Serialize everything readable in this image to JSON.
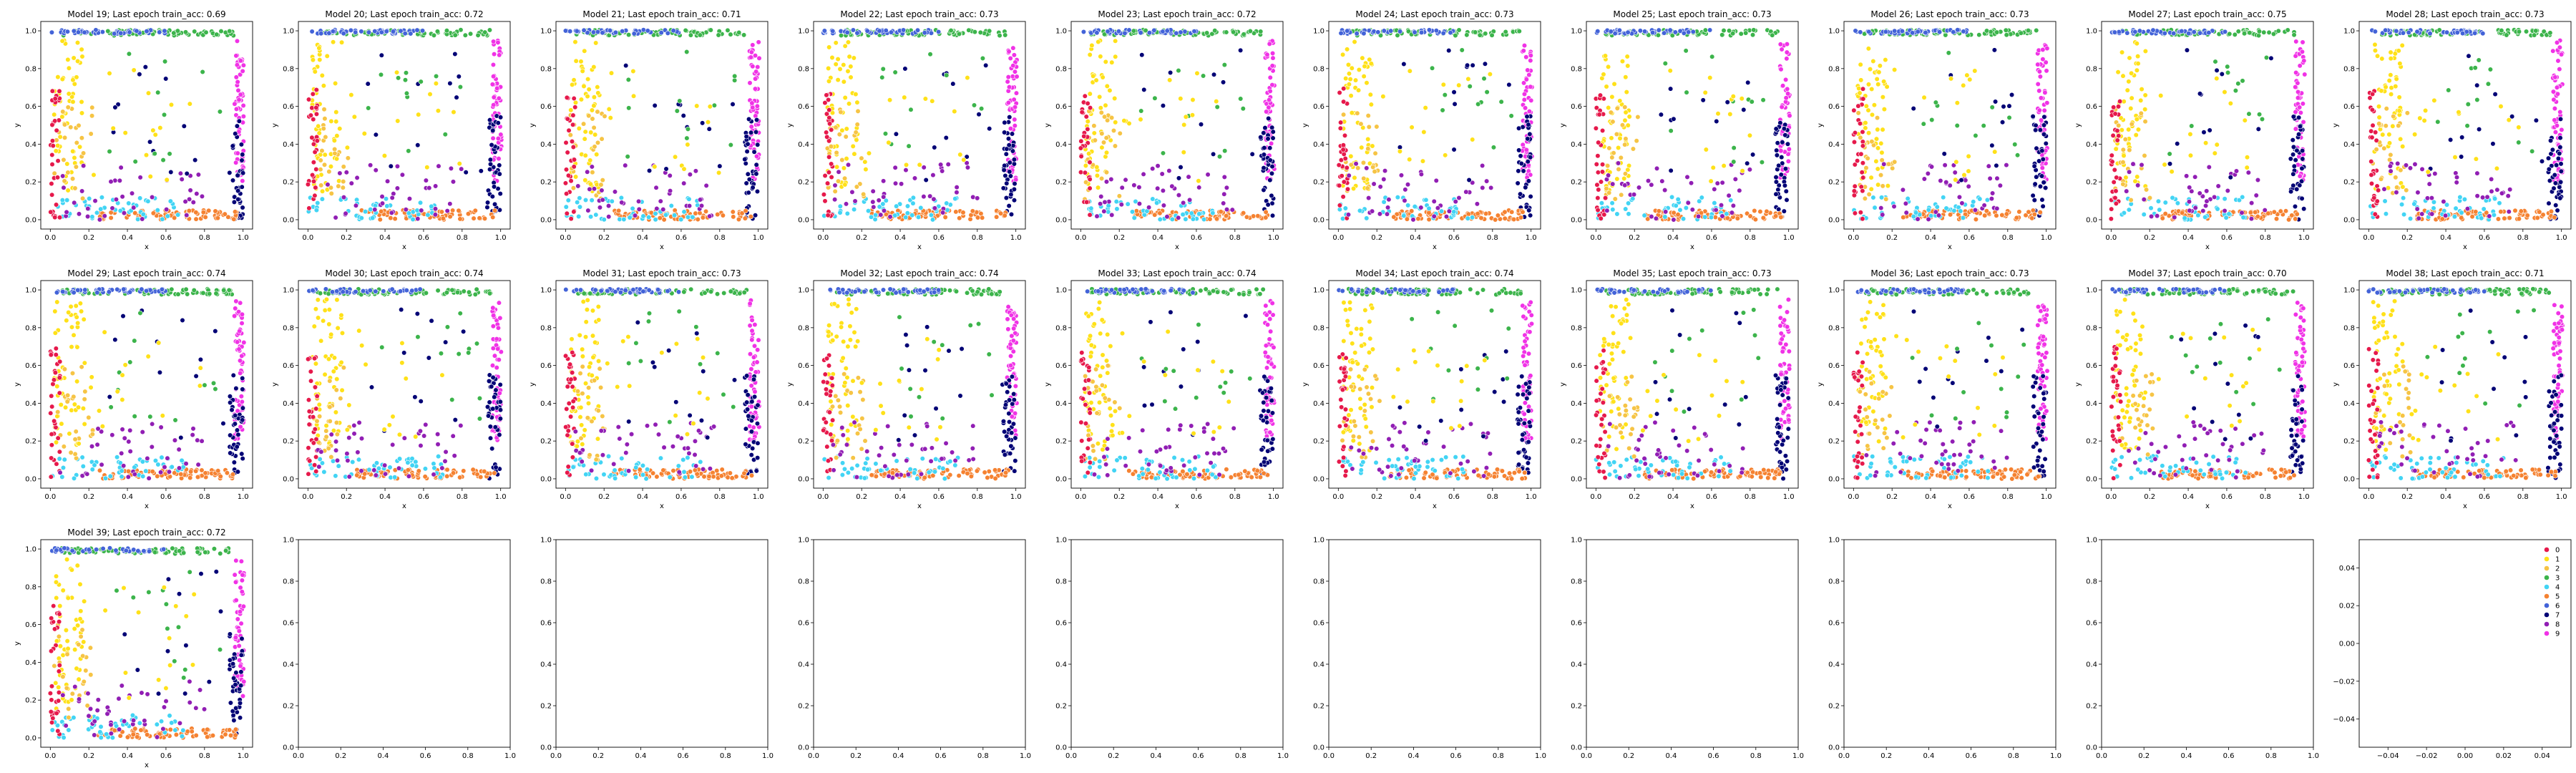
{
  "figure": {
    "background": "#ffffff",
    "class_colors": [
      "#e6194b",
      "#ffe119",
      "#f6c445",
      "#3cb44b",
      "#42d4f4",
      "#f58231",
      "#4363d8",
      "#000075",
      "#911eb4",
      "#f032e6"
    ],
    "legend": {
      "placement": "top-right of last panel",
      "labels": [
        "0",
        "1",
        "2",
        "3",
        "4",
        "5",
        "6",
        "7",
        "8",
        "9"
      ]
    }
  },
  "chart_data": [
    {
      "type": "scatter",
      "title": "Model 19; Last epoch train_acc: 0.69",
      "xlabel": "x",
      "ylabel": "y",
      "xlim": [
        0,
        1
      ],
      "ylim": [
        0,
        1
      ],
      "grid": false
    },
    {
      "type": "scatter",
      "title": "Model 20; Last epoch train_acc: 0.72",
      "xlabel": "x",
      "ylabel": "y",
      "xlim": [
        0,
        1
      ],
      "ylim": [
        0,
        1
      ],
      "grid": false
    },
    {
      "type": "scatter",
      "title": "Model 21; Last epoch train_acc: 0.71",
      "xlabel": "x",
      "ylabel": "y",
      "xlim": [
        0,
        1
      ],
      "ylim": [
        0,
        1
      ],
      "grid": false
    },
    {
      "type": "scatter",
      "title": "Model 22; Last epoch train_acc: 0.73",
      "xlabel": "x",
      "ylabel": "y",
      "xlim": [
        0,
        1
      ],
      "ylim": [
        0,
        1
      ],
      "grid": false
    },
    {
      "type": "scatter",
      "title": "Model 23; Last epoch train_acc: 0.72",
      "xlabel": "x",
      "ylabel": "y",
      "xlim": [
        0,
        1
      ],
      "ylim": [
        0,
        1
      ],
      "grid": false
    },
    {
      "type": "scatter",
      "title": "Model 24; Last epoch train_acc: 0.73",
      "xlabel": "x",
      "ylabel": "y",
      "xlim": [
        0,
        1
      ],
      "ylim": [
        0,
        1
      ],
      "grid": false
    },
    {
      "type": "scatter",
      "title": "Model 25; Last epoch train_acc: 0.73",
      "xlabel": "x",
      "ylabel": "y",
      "xlim": [
        0,
        1
      ],
      "ylim": [
        0,
        1
      ],
      "grid": false
    },
    {
      "type": "scatter",
      "title": "Model 26; Last epoch train_acc: 0.73",
      "xlabel": "x",
      "ylabel": "y",
      "xlim": [
        0,
        1
      ],
      "ylim": [
        0,
        1
      ],
      "grid": false
    },
    {
      "type": "scatter",
      "title": "Model 27; Last epoch train_acc: 0.75",
      "xlabel": "x",
      "ylabel": "y",
      "xlim": [
        0,
        1
      ],
      "ylim": [
        0,
        1
      ],
      "grid": false
    },
    {
      "type": "scatter",
      "title": "Model 28; Last epoch train_acc: 0.73",
      "xlabel": "x",
      "ylabel": "y",
      "xlim": [
        0,
        1
      ],
      "ylim": [
        0,
        1
      ],
      "grid": false
    },
    {
      "type": "scatter",
      "title": "Model 29; Last epoch train_acc: 0.74",
      "xlabel": "x",
      "ylabel": "y",
      "xlim": [
        0,
        1
      ],
      "ylim": [
        0,
        1
      ],
      "grid": false
    },
    {
      "type": "scatter",
      "title": "Model 30; Last epoch train_acc: 0.74",
      "xlabel": "x",
      "ylabel": "y",
      "xlim": [
        0,
        1
      ],
      "ylim": [
        0,
        1
      ],
      "grid": false
    },
    {
      "type": "scatter",
      "title": "Model 31; Last epoch train_acc: 0.73",
      "xlabel": "x",
      "ylabel": "y",
      "xlim": [
        0,
        1
      ],
      "ylim": [
        0,
        1
      ],
      "grid": false
    },
    {
      "type": "scatter",
      "title": "Model 32; Last epoch train_acc: 0.74",
      "xlabel": "x",
      "ylabel": "y",
      "xlim": [
        0,
        1
      ],
      "ylim": [
        0,
        1
      ],
      "grid": false
    },
    {
      "type": "scatter",
      "title": "Model 33; Last epoch train_acc: 0.74",
      "xlabel": "x",
      "ylabel": "y",
      "xlim": [
        0,
        1
      ],
      "ylim": [
        0,
        1
      ],
      "grid": false
    },
    {
      "type": "scatter",
      "title": "Model 34; Last epoch train_acc: 0.74",
      "xlabel": "x",
      "ylabel": "y",
      "xlim": [
        0,
        1
      ],
      "ylim": [
        0,
        1
      ],
      "grid": false
    },
    {
      "type": "scatter",
      "title": "Model 35; Last epoch train_acc: 0.73",
      "xlabel": "x",
      "ylabel": "y",
      "xlim": [
        0,
        1
      ],
      "ylim": [
        0,
        1
      ],
      "grid": false
    },
    {
      "type": "scatter",
      "title": "Model 36; Last epoch train_acc: 0.73",
      "xlabel": "x",
      "ylabel": "y",
      "xlim": [
        0,
        1
      ],
      "ylim": [
        0,
        1
      ],
      "grid": false
    },
    {
      "type": "scatter",
      "title": "Model 37; Last epoch train_acc: 0.70",
      "xlabel": "x",
      "ylabel": "y",
      "xlim": [
        0,
        1
      ],
      "ylim": [
        0,
        1
      ],
      "grid": false
    },
    {
      "type": "scatter",
      "title": "Model 38; Last epoch train_acc: 0.71",
      "xlabel": "x",
      "ylabel": "y",
      "xlim": [
        0,
        1
      ],
      "ylim": [
        0,
        1
      ],
      "grid": false
    },
    {
      "type": "scatter",
      "title": "Model 39; Last epoch train_acc: 0.72",
      "xlabel": "x",
      "ylabel": "y",
      "xlim": [
        0,
        1
      ],
      "ylim": [
        0,
        1
      ],
      "grid": false
    },
    {
      "type": "empty",
      "title": "",
      "xlabel": "",
      "ylabel": "",
      "xlim": [
        0,
        1
      ],
      "ylim": [
        0,
        1
      ]
    },
    {
      "type": "empty",
      "title": "",
      "xlabel": "",
      "ylabel": "",
      "xlim": [
        0,
        1
      ],
      "ylim": [
        0,
        1
      ]
    },
    {
      "type": "empty",
      "title": "",
      "xlabel": "",
      "ylabel": "",
      "xlim": [
        0,
        1
      ],
      "ylim": [
        0,
        1
      ]
    },
    {
      "type": "empty",
      "title": "",
      "xlabel": "",
      "ylabel": "",
      "xlim": [
        0,
        1
      ],
      "ylim": [
        0,
        1
      ]
    },
    {
      "type": "empty",
      "title": "",
      "xlabel": "",
      "ylabel": "",
      "xlim": [
        0,
        1
      ],
      "ylim": [
        0,
        1
      ]
    },
    {
      "type": "empty",
      "title": "",
      "xlabel": "",
      "ylabel": "",
      "xlim": [
        0,
        1
      ],
      "ylim": [
        0,
        1
      ]
    },
    {
      "type": "empty",
      "title": "",
      "xlabel": "",
      "ylabel": "",
      "xlim": [
        0,
        1
      ],
      "ylim": [
        0,
        1
      ]
    },
    {
      "type": "empty",
      "title": "",
      "xlabel": "",
      "ylabel": "",
      "xlim": [
        0,
        1
      ],
      "ylim": [
        0,
        1
      ]
    },
    {
      "type": "empty",
      "title": "",
      "xlabel": "",
      "ylabel": "",
      "xlim": [
        -0.05,
        0.05
      ],
      "ylim": [
        -0.05,
        0.05
      ],
      "legend": true
    }
  ]
}
